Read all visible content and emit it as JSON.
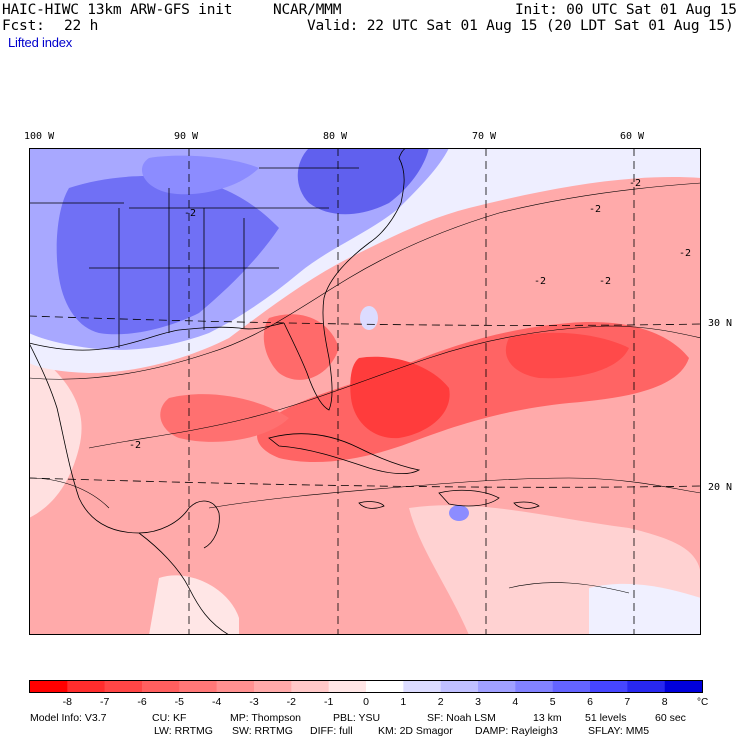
{
  "header": {
    "model_title": "HAIC-HIWC 13km ARW-GFS init",
    "center": "NCAR/MMM",
    "init": "Init: 00 UTC Sat 01 Aug 15",
    "fcst_label": "Fcst:",
    "fcst_value": "22 h",
    "valid": "Valid: 22 UTC Sat 01 Aug 15 (20 LDT Sat 01 Aug 15)",
    "field": "Lifted index"
  },
  "map": {
    "lon_labels": [
      "100 W",
      "90 W",
      "80 W",
      "70 W",
      "60 W"
    ],
    "lat_labels": [
      "30 N",
      "20 N"
    ],
    "contour_labels": [
      "-2",
      "-2",
      "-2",
      "-2",
      "-2",
      "-2",
      "-2"
    ]
  },
  "colorbar": {
    "ticks": [
      "-8",
      "-7",
      "-6",
      "-5",
      "-4",
      "-3",
      "-2",
      "-1",
      "0",
      "1",
      "2",
      "3",
      "4",
      "5",
      "6",
      "7",
      "8"
    ],
    "unit": "°C",
    "colors": [
      "#ff0000",
      "#ff2d2d",
      "#ff4646",
      "#ff5f5f",
      "#ff7878",
      "#ff9191",
      "#ffaaaa",
      "#ffc8c8",
      "#ffe6e6",
      "#ffffff",
      "#dcdcff",
      "#c0c0ff",
      "#a0a0ff",
      "#8282ff",
      "#6464ff",
      "#4646ff",
      "#2828f0",
      "#0000dc"
    ]
  },
  "footer": {
    "line1": [
      "Model Info: V3.7",
      "CU: KF",
      "MP: Thompson",
      "PBL: YSU",
      "SF: Noah LSM",
      "13 km",
      "51 levels",
      "60 sec"
    ],
    "line2": [
      "LW: RRTMG",
      "SW: RRTMG",
      "DIFF: full",
      "KM: 2D Smagor",
      "DAMP: Rayleigh3",
      "SFLAY: MM5"
    ]
  }
}
